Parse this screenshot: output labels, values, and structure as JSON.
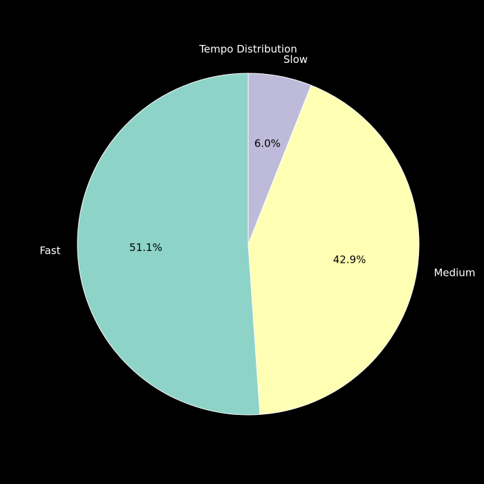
{
  "chart_data": {
    "type": "pie",
    "title": "Tempo Distribution",
    "start_angle_deg": 90,
    "direction": "counterclockwise",
    "slices": [
      {
        "label": "Fast",
        "value": 51.1,
        "pct_label": "51.1%",
        "color": "#8dd3c7"
      },
      {
        "label": "Medium",
        "value": 42.9,
        "pct_label": "42.9%",
        "color": "#ffffb3"
      },
      {
        "label": "Slow",
        "value": 6.0,
        "pct_label": "6.0%",
        "color": "#bebada"
      }
    ]
  },
  "colors": {
    "background": "#000000",
    "text": "#ffffff",
    "wedge_edge": "#ffffff"
  }
}
